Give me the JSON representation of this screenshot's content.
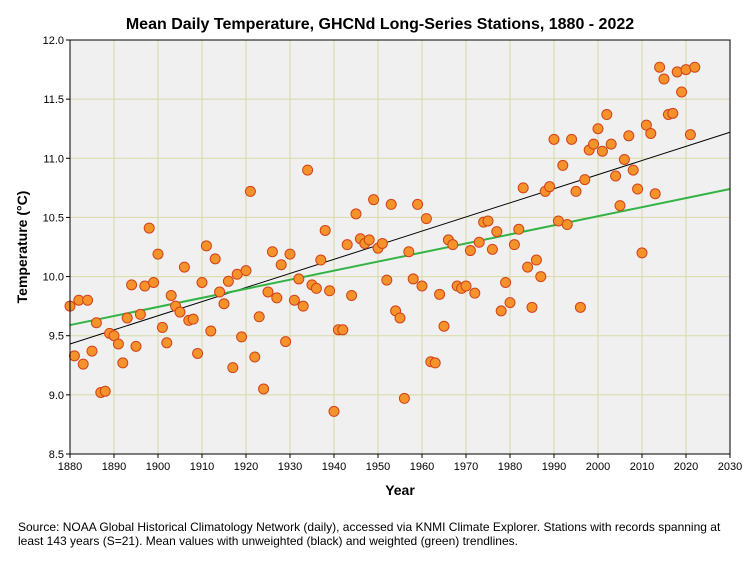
{
  "colors": {
    "plot_background": "#f0f0f0",
    "grid": "#d9d9a8",
    "point_fill": "#f5922a",
    "point_stroke": "#d2411a",
    "unweighted_trend": "#000000",
    "weighted_trend": "#33b344"
  },
  "caption": "Source: NOAA Global Historical Climatology Network (daily), accessed via KNMI Climate Explorer. Stations with records spanning at least 143 years (S=21). Mean values with unweighted (black) and weighted (green) trendlines.",
  "chart_data": {
    "type": "scatter",
    "title": "Mean Daily Temperature, GHCNd Long-Series Stations, 1880 - 2022",
    "xlabel": "Year",
    "ylabel": "Temperature (°C)",
    "xlim": [
      1880,
      2030
    ],
    "ylim": [
      8.5,
      12.0
    ],
    "x_ticks": [
      1880,
      1890,
      1900,
      1910,
      1920,
      1930,
      1940,
      1950,
      1960,
      1970,
      1980,
      1990,
      2000,
      2010,
      2020,
      2030
    ],
    "y_ticks": [
      8.5,
      9.0,
      9.5,
      10.0,
      10.5,
      11.0,
      11.5,
      12.0
    ],
    "grid": true,
    "x": [
      1880,
      1881,
      1882,
      1883,
      1884,
      1885,
      1886,
      1887,
      1888,
      1889,
      1890,
      1891,
      1892,
      1893,
      1894,
      1895,
      1896,
      1897,
      1898,
      1899,
      1900,
      1901,
      1902,
      1903,
      1904,
      1905,
      1906,
      1907,
      1908,
      1909,
      1910,
      1911,
      1912,
      1913,
      1914,
      1915,
      1916,
      1917,
      1918,
      1919,
      1920,
      1921,
      1922,
      1923,
      1924,
      1925,
      1926,
      1927,
      1928,
      1929,
      1930,
      1931,
      1932,
      1933,
      1934,
      1935,
      1936,
      1937,
      1938,
      1939,
      1940,
      1941,
      1942,
      1943,
      1944,
      1945,
      1946,
      1947,
      1948,
      1949,
      1950,
      1951,
      1952,
      1953,
      1954,
      1955,
      1956,
      1957,
      1958,
      1959,
      1960,
      1961,
      1962,
      1963,
      1964,
      1965,
      1966,
      1967,
      1968,
      1969,
      1970,
      1971,
      1972,
      1973,
      1974,
      1975,
      1976,
      1977,
      1978,
      1979,
      1980,
      1981,
      1982,
      1983,
      1984,
      1985,
      1986,
      1987,
      1988,
      1989,
      1990,
      1991,
      1992,
      1993,
      1994,
      1995,
      1996,
      1997,
      1998,
      1999,
      2000,
      2001,
      2002,
      2003,
      2004,
      2005,
      2006,
      2007,
      2008,
      2009,
      2010,
      2011,
      2012,
      2013,
      2014,
      2015,
      2016,
      2017,
      2018,
      2019,
      2020,
      2021,
      2022
    ],
    "y": [
      9.75,
      9.33,
      9.8,
      9.26,
      9.8,
      9.37,
      9.61,
      9.02,
      9.03,
      9.52,
      9.5,
      9.43,
      9.27,
      9.65,
      9.93,
      9.41,
      9.68,
      9.92,
      10.41,
      9.95,
      10.19,
      9.57,
      9.44,
      9.84,
      9.75,
      9.7,
      10.08,
      9.63,
      9.64,
      9.35,
      9.95,
      10.26,
      9.54,
      10.15,
      9.87,
      9.77,
      9.96,
      9.23,
      10.02,
      9.49,
      10.05,
      10.72,
      9.32,
      9.66,
      9.05,
      9.87,
      10.21,
      9.82,
      10.1,
      9.45,
      10.19,
      9.8,
      9.98,
      9.75,
      10.9,
      9.93,
      9.9,
      10.14,
      10.39,
      9.88,
      8.86,
      9.55,
      9.55,
      10.27,
      9.84,
      10.53,
      10.32,
      10.28,
      10.31,
      10.65,
      10.24,
      10.28,
      9.97,
      10.61,
      9.71,
      9.65,
      8.97,
      10.21,
      9.98,
      10.61,
      9.92,
      10.49,
      9.28,
      9.27,
      9.85,
      9.58,
      10.31,
      10.27,
      9.92,
      9.9,
      9.92,
      10.22,
      9.86,
      10.29,
      10.46,
      10.47,
      10.23,
      10.38,
      9.71,
      9.95,
      9.78,
      10.27,
      10.4,
      10.75,
      10.08,
      9.74,
      10.14,
      10.0,
      10.72,
      10.76,
      11.16,
      10.47,
      10.94,
      10.44,
      11.16,
      10.72,
      9.74,
      10.82,
      11.07,
      11.12,
      11.25,
      11.06,
      11.37,
      11.12,
      10.85,
      10.6,
      10.99,
      11.19,
      10.9,
      10.74,
      10.2,
      11.28,
      11.21,
      10.7,
      11.77,
      11.67,
      11.37,
      11.38,
      11.73,
      11.56,
      11.75,
      11.2,
      11.77
    ],
    "trendlines": [
      {
        "label": "unweighted",
        "color": "#000000",
        "x": [
          1880,
          2030
        ],
        "y": [
          9.43,
          11.22
        ]
      },
      {
        "label": "weighted",
        "color": "#33b344",
        "x": [
          1880,
          2030
        ],
        "y": [
          9.59,
          10.74
        ]
      }
    ]
  }
}
